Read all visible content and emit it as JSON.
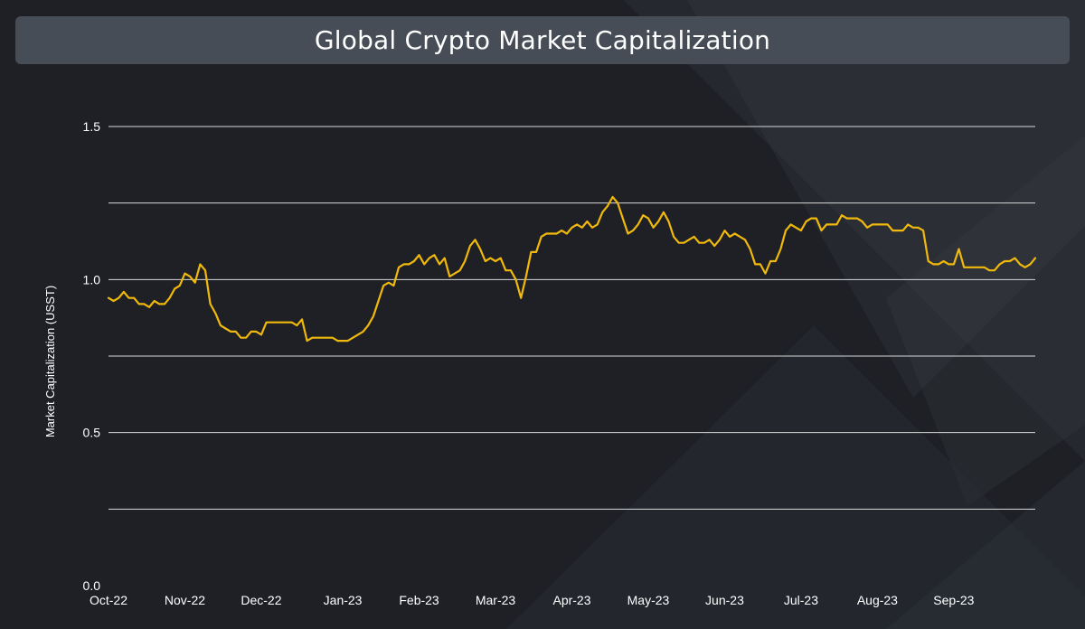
{
  "chart_data": {
    "type": "line",
    "title": "Global Crypto Market Capitalization",
    "xlabel": "",
    "ylabel": "Market Capitalization (USST)",
    "ylim": [
      0,
      1.5
    ],
    "yticks": [
      0.0,
      0.5,
      1.0,
      1.5
    ],
    "ytick_labels": [
      "0.0",
      "0.5",
      "1.0",
      "1.5"
    ],
    "grid_values": [
      0.25,
      0.5,
      0.75,
      1.0,
      1.25,
      1.5
    ],
    "x_tick_labels": [
      "Oct-22",
      "Nov-22",
      "Dec-22",
      "Jan-23",
      "Feb-23",
      "Mar-23",
      "Apr-23",
      "May-23",
      "Jun-23",
      "Jul-23",
      "Aug-23",
      "Sep-23"
    ],
    "x_tick_day_index": [
      0,
      15,
      30,
      46,
      61,
      76,
      91,
      106,
      121,
      136,
      151,
      166
    ],
    "line_color": "#f0b90b",
    "series": [
      {
        "name": "Market Capitalization",
        "values": [
          0.94,
          0.93,
          0.94,
          0.96,
          0.94,
          0.94,
          0.92,
          0.92,
          0.91,
          0.93,
          0.92,
          0.92,
          0.94,
          0.97,
          0.98,
          1.02,
          1.01,
          0.99,
          1.05,
          1.03,
          0.92,
          0.89,
          0.85,
          0.84,
          0.83,
          0.83,
          0.81,
          0.81,
          0.83,
          0.83,
          0.82,
          0.86,
          0.86,
          0.86,
          0.86,
          0.86,
          0.86,
          0.85,
          0.87,
          0.8,
          0.81,
          0.81,
          0.81,
          0.81,
          0.81,
          0.8,
          0.8,
          0.8,
          0.81,
          0.82,
          0.83,
          0.85,
          0.88,
          0.93,
          0.98,
          0.99,
          0.98,
          1.04,
          1.05,
          1.05,
          1.06,
          1.08,
          1.05,
          1.07,
          1.08,
          1.05,
          1.07,
          1.01,
          1.02,
          1.03,
          1.06,
          1.11,
          1.13,
          1.1,
          1.06,
          1.07,
          1.06,
          1.07,
          1.03,
          1.03,
          1.0,
          0.94,
          1.01,
          1.09,
          1.09,
          1.14,
          1.15,
          1.15,
          1.15,
          1.16,
          1.15,
          1.17,
          1.18,
          1.17,
          1.19,
          1.17,
          1.18,
          1.22,
          1.24,
          1.27,
          1.25,
          1.2,
          1.15,
          1.16,
          1.18,
          1.21,
          1.2,
          1.17,
          1.19,
          1.22,
          1.19,
          1.14,
          1.12,
          1.12,
          1.13,
          1.14,
          1.12,
          1.12,
          1.13,
          1.11,
          1.13,
          1.16,
          1.14,
          1.15,
          1.14,
          1.13,
          1.1,
          1.05,
          1.05,
          1.02,
          1.06,
          1.06,
          1.1,
          1.16,
          1.18,
          1.17,
          1.16,
          1.19,
          1.2,
          1.2,
          1.16,
          1.18,
          1.18,
          1.18,
          1.21,
          1.2,
          1.2,
          1.2,
          1.19,
          1.17,
          1.18,
          1.18,
          1.18,
          1.18,
          1.16,
          1.16,
          1.16,
          1.18,
          1.17,
          1.17,
          1.16,
          1.06,
          1.05,
          1.05,
          1.06,
          1.05,
          1.05,
          1.1,
          1.04,
          1.04,
          1.04,
          1.04,
          1.04,
          1.03,
          1.03,
          1.05,
          1.06,
          1.06,
          1.07,
          1.05,
          1.04,
          1.05,
          1.07
        ]
      }
    ]
  }
}
